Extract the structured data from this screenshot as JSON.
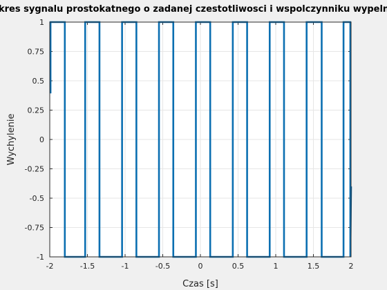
{
  "chart_data": {
    "type": "line",
    "title": "kres sygnalu prostokatnego o zadanej czestotliwosci i wspolczynniku wypelnienia",
    "xlabel": "Czas [s]",
    "ylabel": "Wychylenie",
    "xlim": [
      -2,
      2
    ],
    "ylim": [
      -1,
      1
    ],
    "xticks": [
      -2,
      -1.5,
      -1,
      -0.5,
      0,
      0.5,
      1,
      1.5,
      2
    ],
    "xtick_labels": [
      "-2",
      "-1.5",
      "-1",
      "-0.5",
      "0",
      "0.5",
      "1",
      "1.5",
      "2"
    ],
    "yticks": [
      -1,
      -0.75,
      -0.5,
      -0.25,
      0,
      0.25,
      0.5,
      0.75,
      1
    ],
    "ytick_labels": [
      "-1",
      "-0.75",
      "-0.5",
      "-0.25",
      "0",
      "0.25",
      "0.5",
      "0.75",
      "1"
    ],
    "grid": true,
    "line_color": "#0b6fb1",
    "series": [
      {
        "x": [
          -2.0,
          -1.99,
          -1.99,
          -1.8,
          -1.8,
          -1.53,
          -1.53,
          -1.34,
          -1.34,
          -1.04,
          -1.04,
          -0.85,
          -0.85,
          -0.55,
          -0.55,
          -0.36,
          -0.36,
          -0.06,
          -0.06,
          0.13,
          0.13,
          0.43,
          0.43,
          0.62,
          0.62,
          0.92,
          0.92,
          1.11,
          1.11,
          1.41,
          1.41,
          1.61,
          1.61,
          1.9,
          1.9,
          1.99,
          1.99,
          2.0
        ],
        "y": [
          0.4,
          0.4,
          1,
          1,
          -1,
          -1,
          1,
          1,
          -1,
          -1,
          1,
          1,
          -1,
          -1,
          1,
          1,
          -1,
          -1,
          1,
          1,
          -1,
          -1,
          1,
          1,
          -1,
          -1,
          1,
          1,
          -1,
          -1,
          1,
          1,
          -1,
          -1,
          1,
          1,
          -1,
          -0.4
        ]
      }
    ]
  }
}
